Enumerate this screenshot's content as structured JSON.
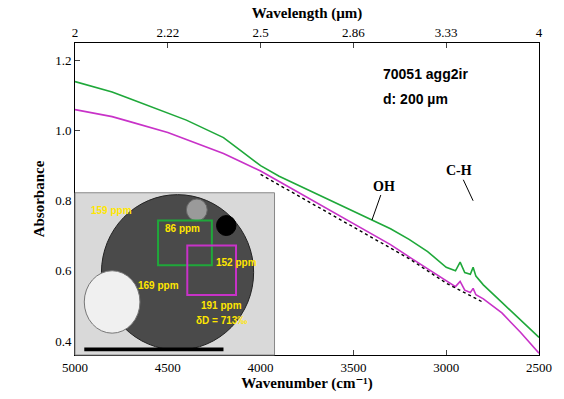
{
  "chart_data": {
    "type": "line",
    "x_label": "Wavenumber (cm⁻¹)",
    "x2_label": "Wavelength (µm)",
    "y_label": "Absorbance",
    "xlim": [
      5000,
      2500
    ],
    "xticks": [
      5000,
      4500,
      4000,
      3500,
      3000,
      2500
    ],
    "x2lim": [
      5000,
      2500
    ],
    "x2ticks": [
      {
        "value": 5000,
        "label": "2"
      },
      {
        "value": 4500,
        "label": "2.22"
      },
      {
        "value": 4000,
        "label": "2.5"
      },
      {
        "value": 3500,
        "label": "2.86"
      },
      {
        "value": 3000,
        "label": "3.33"
      },
      {
        "value": 2500,
        "label": "4"
      }
    ],
    "ylim": [
      0.36,
      1.25
    ],
    "yticks": [
      0.4,
      0.6,
      0.8,
      {
        "value": 1,
        "label": "1.0"
      },
      1.2
    ],
    "grid": false,
    "series": [
      {
        "color": "#1fa83a",
        "line_style": "solid",
        "x": [
          5000,
          4900,
          4800,
          4700,
          4600,
          4500,
          4400,
          4300,
          4200,
          4100,
          4000,
          3900,
          3800,
          3700,
          3600,
          3500,
          3400,
          3300,
          3200,
          3100,
          3000,
          2950,
          2925,
          2900,
          2870,
          2855,
          2840,
          2800,
          2700,
          2600,
          2500
        ],
        "values": [
          1.14,
          1.125,
          1.11,
          1.09,
          1.07,
          1.05,
          1.03,
          1.005,
          0.98,
          0.94,
          0.9,
          0.87,
          0.845,
          0.82,
          0.795,
          0.77,
          0.745,
          0.72,
          0.69,
          0.655,
          0.61,
          0.6,
          0.625,
          0.595,
          0.59,
          0.61,
          0.585,
          0.56,
          0.51,
          0.46,
          0.41
        ]
      },
      {
        "color": "#c832c8",
        "line_style": "solid",
        "x": [
          5000,
          4900,
          4800,
          4700,
          4600,
          4500,
          4400,
          4300,
          4200,
          4100,
          4000,
          3900,
          3800,
          3700,
          3600,
          3500,
          3400,
          3300,
          3200,
          3100,
          3000,
          2950,
          2925,
          2900,
          2870,
          2855,
          2840,
          2800,
          2700,
          2600,
          2500
        ],
        "values": [
          1.06,
          1.05,
          1.04,
          1.025,
          1.01,
          0.995,
          0.975,
          0.955,
          0.935,
          0.91,
          0.885,
          0.855,
          0.825,
          0.795,
          0.765,
          0.735,
          0.705,
          0.675,
          0.64,
          0.605,
          0.57,
          0.555,
          0.57,
          0.545,
          0.538,
          0.55,
          0.532,
          0.52,
          0.48,
          0.425,
          0.365
        ]
      },
      {
        "color": "#000000",
        "line_style": "dot",
        "x": [
          4000,
          3800,
          3600,
          3400,
          3200,
          3000,
          2800
        ],
        "values": [
          0.875,
          0.815,
          0.755,
          0.695,
          0.635,
          0.565,
          0.51
        ]
      }
    ],
    "annotations": [
      {
        "text": "OH",
        "x": 3400,
        "y": 0.745
      },
      {
        "text": "C-H",
        "x": 2855,
        "y": 0.8
      }
    ],
    "sample": [
      "70051 agg2ir",
      "d: 200 µm"
    ],
    "inset": {
      "labels": [
        "159 ppm",
        "86 ppm",
        "152 ppm",
        "169 ppm",
        "191 ppm",
        "δD = 713‰"
      ]
    }
  }
}
